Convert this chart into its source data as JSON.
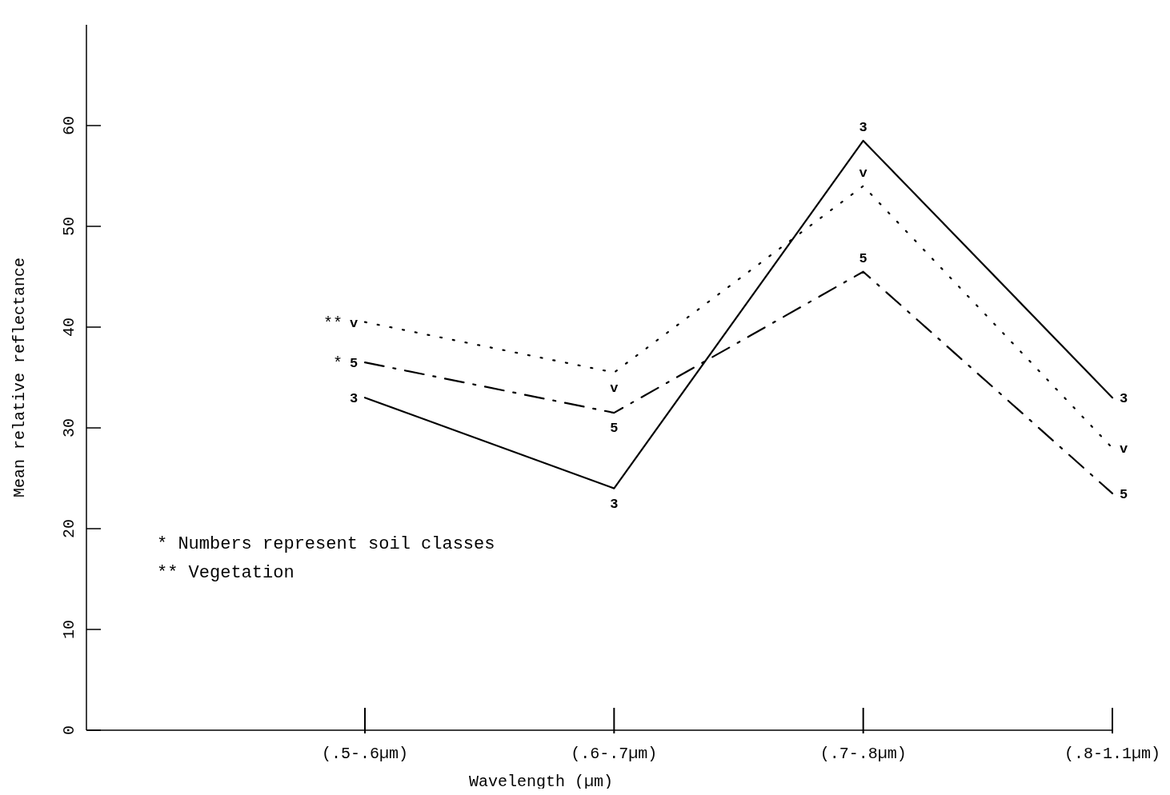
{
  "chart_data": {
    "type": "line",
    "xlabel": "Wavelength  (µm)",
    "ylabel": "Mean relative reflectance",
    "categories": [
      "(.5-.6µm)",
      "(.6-.7µm)",
      "(.7-.8µm)",
      "(.8-1.1µm)"
    ],
    "ylim": [
      0,
      70
    ],
    "yticks": [
      0,
      10,
      20,
      30,
      40,
      50,
      60
    ],
    "grid": false,
    "series": [
      {
        "name": "v",
        "color": "#000000",
        "line_style": "dotted",
        "values": [
          40.5,
          35.5,
          54,
          28
        ]
      },
      {
        "name": "5",
        "color": "#000000",
        "line_style": "dashed",
        "values": [
          36.5,
          31.5,
          45.5,
          23.5
        ]
      },
      {
        "name": "3",
        "color": "#000000",
        "line_style": "solid",
        "values": [
          33,
          24,
          58.5,
          33
        ]
      }
    ],
    "annotations": [
      {
        "text": "**",
        "x": "(.5-.6µm)",
        "y": 40.5
      },
      {
        "text": "*",
        "x": "(.5-.6µm)",
        "y": 36.5
      },
      "* Numbers represent soil classes",
      "** Vegetation"
    ]
  }
}
